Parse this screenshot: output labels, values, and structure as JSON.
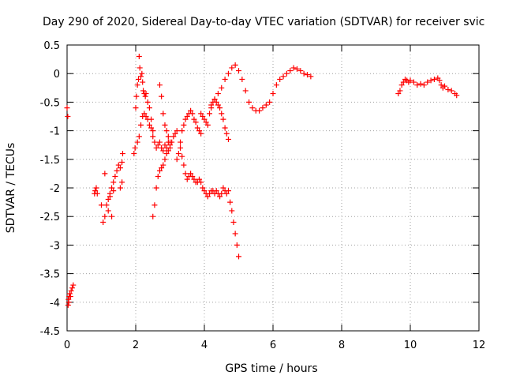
{
  "chart_data": {
    "type": "scatter",
    "title": "Day 290 of 2020, Sidereal Day-to-day VTEC variation (SDTVAR) for receiver svic",
    "xlabel": "GPS time / hours",
    "ylabel": "SDTVAR / TECUs",
    "xlim": [
      0,
      12
    ],
    "ylim": [
      -4.5,
      0.5
    ],
    "xticks": [
      0,
      2,
      4,
      6,
      8,
      10,
      12
    ],
    "yticks": [
      0.5,
      0,
      -0.5,
      -1,
      -1.5,
      -2,
      -2.5,
      -3,
      -3.5,
      -4,
      -4.5
    ],
    "grid": true,
    "marker": "+",
    "color": "#ff0000",
    "series": [
      {
        "name": "svic",
        "x": [
          0.0,
          0.02,
          0.03,
          0.04,
          0.05,
          0.06,
          0.08,
          0.1,
          0.12,
          0.15,
          0.18,
          0.8,
          0.82,
          0.85,
          0.88,
          1.0,
          1.05,
          1.1,
          1.15,
          1.2,
          1.25,
          1.3,
          1.35,
          1.4,
          1.45,
          1.5,
          1.55,
          1.6,
          1.62,
          1.55,
          1.6,
          1.35,
          1.25,
          1.1,
          1.2,
          1.3,
          1.95,
          1.98,
          2.0,
          2.02,
          2.05,
          2.08,
          2.1,
          2.12,
          2.15,
          2.18,
          2.2,
          2.22,
          2.25,
          2.28,
          2.3,
          2.35,
          2.4,
          2.45,
          2.5,
          2.05,
          2.1,
          2.15,
          2.2,
          2.25,
          2.3,
          2.35,
          2.4,
          2.45,
          2.5,
          2.55,
          2.6,
          2.65,
          2.7,
          2.75,
          2.8,
          2.85,
          2.9,
          2.95,
          3.0,
          2.5,
          2.55,
          2.6,
          2.65,
          2.7,
          2.75,
          2.8,
          2.85,
          2.9,
          2.95,
          3.0,
          3.05,
          3.1,
          3.15,
          3.2,
          2.7,
          2.75,
          2.8,
          2.85,
          2.9,
          2.95,
          3.0,
          3.2,
          3.25,
          3.3,
          3.35,
          3.4,
          3.45,
          3.5,
          3.55,
          3.6,
          3.65,
          3.7,
          3.75,
          3.8,
          3.85,
          3.9,
          3.3,
          3.35,
          3.4,
          3.45,
          3.5,
          3.55,
          3.6,
          3.65,
          3.7,
          3.75,
          3.8,
          3.85,
          3.9,
          3.95,
          4.0,
          4.05,
          4.1,
          4.15,
          4.2,
          4.25,
          4.3,
          4.35,
          4.4,
          4.45,
          4.5,
          4.55,
          4.6,
          4.65,
          4.7,
          4.75,
          4.8,
          4.85,
          4.9,
          4.95,
          5.0,
          3.9,
          3.95,
          4.0,
          4.05,
          4.1,
          4.15,
          4.2,
          4.25,
          4.3,
          4.35,
          4.4,
          4.45,
          4.5,
          4.55,
          4.6,
          4.65,
          4.7,
          4.2,
          4.3,
          4.4,
          4.5,
          4.6,
          4.7,
          4.8,
          4.9,
          5.0,
          5.1,
          5.2,
          5.3,
          5.4,
          5.5,
          5.6,
          5.7,
          5.8,
          5.9,
          6.0,
          6.1,
          6.2,
          6.3,
          6.4,
          6.5,
          6.6,
          6.7,
          6.8,
          6.9,
          7.0,
          7.1,
          9.65,
          9.7,
          9.75,
          9.8,
          9.85,
          9.9,
          9.95,
          10.0,
          10.1,
          10.2,
          10.3,
          10.4,
          10.5,
          10.6,
          10.7,
          10.8,
          10.85,
          10.9,
          10.95,
          11.0,
          11.1,
          11.2,
          11.3,
          11.35
        ],
        "y": [
          -0.6,
          -0.75,
          -4.05,
          -3.95,
          -4.0,
          -3.9,
          -3.85,
          -3.9,
          -3.8,
          -3.75,
          -3.7,
          -2.1,
          -2.05,
          -2.0,
          -2.1,
          -2.3,
          -2.6,
          -2.5,
          -2.3,
          -2.2,
          -2.1,
          -2.0,
          -1.9,
          -1.8,
          -1.7,
          -1.6,
          -1.65,
          -1.55,
          -1.4,
          -2.0,
          -1.9,
          -2.05,
          -2.15,
          -1.75,
          -2.4,
          -2.5,
          -1.4,
          -1.3,
          -0.6,
          -0.4,
          -0.2,
          -0.1,
          0.3,
          0.1,
          -0.05,
          0.0,
          -0.15,
          -0.3,
          -0.35,
          -0.4,
          -0.35,
          -0.5,
          -0.6,
          -0.8,
          -1.0,
          -1.2,
          -1.1,
          -0.9,
          -0.75,
          -0.7,
          -0.75,
          -0.8,
          -0.9,
          -0.95,
          -1.1,
          -1.2,
          -1.3,
          -1.25,
          -1.2,
          -1.3,
          -1.35,
          -1.25,
          -1.3,
          -1.2,
          -1.25,
          -2.5,
          -2.3,
          -2.0,
          -1.8,
          -1.7,
          -1.65,
          -1.6,
          -1.5,
          -1.4,
          -1.35,
          -1.3,
          -1.2,
          -1.1,
          -1.05,
          -1.0,
          -0.2,
          -0.4,
          -0.7,
          -0.9,
          -1.0,
          -1.1,
          -1.2,
          -1.5,
          -1.4,
          -1.2,
          -1.0,
          -0.9,
          -0.8,
          -0.75,
          -0.7,
          -0.65,
          -0.7,
          -0.8,
          -0.85,
          -0.95,
          -1.0,
          -1.05,
          -1.3,
          -1.45,
          -1.6,
          -1.75,
          -1.85,
          -1.8,
          -1.75,
          -1.8,
          -1.85,
          -1.9,
          -1.9,
          -1.85,
          -1.9,
          -2.0,
          -2.05,
          -2.1,
          -2.15,
          -2.1,
          -2.05,
          -2.05,
          -2.1,
          -2.05,
          -2.1,
          -2.15,
          -2.1,
          -2.0,
          -2.05,
          -2.1,
          -2.05,
          -2.25,
          -2.4,
          -2.6,
          -2.8,
          -3.0,
          -3.2,
          -0.7,
          -0.75,
          -0.8,
          -0.85,
          -0.9,
          -0.7,
          -0.55,
          -0.5,
          -0.45,
          -0.5,
          -0.55,
          -0.6,
          -0.7,
          -0.8,
          -0.95,
          -1.05,
          -1.15,
          -0.6,
          -0.45,
          -0.35,
          -0.25,
          -0.1,
          0.0,
          0.1,
          0.15,
          0.05,
          -0.1,
          -0.3,
          -0.5,
          -0.6,
          -0.65,
          -0.65,
          -0.6,
          -0.55,
          -0.5,
          -0.35,
          -0.2,
          -0.1,
          -0.05,
          0.0,
          0.05,
          0.1,
          0.08,
          0.05,
          0.0,
          -0.02,
          -0.05,
          -0.35,
          -0.3,
          -0.2,
          -0.15,
          -0.1,
          -0.12,
          -0.15,
          -0.12,
          -0.15,
          -0.2,
          -0.18,
          -0.2,
          -0.15,
          -0.12,
          -0.1,
          -0.08,
          -0.12,
          -0.2,
          -0.25,
          -0.22,
          -0.28,
          -0.3,
          -0.35,
          -0.38
        ]
      }
    ]
  }
}
